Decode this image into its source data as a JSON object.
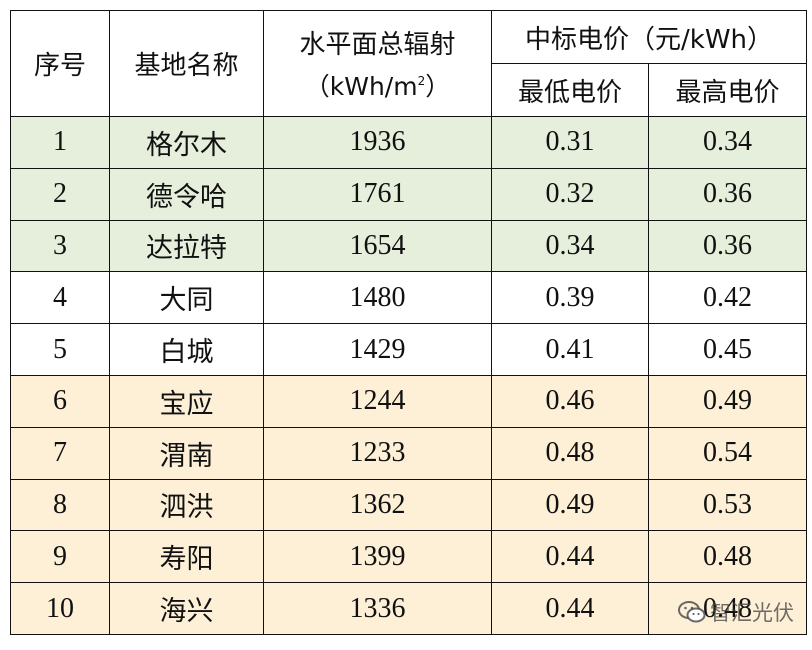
{
  "header": {
    "index": "序号",
    "base_name": "基地名称",
    "irradiance_line1": "水平面总辐射",
    "irradiance_unit_prefix": "（kWh/m",
    "irradiance_unit_sup": "2",
    "irradiance_unit_suffix": "）",
    "price_group": "中标电价（元/kWh）",
    "min_price": "最低电价",
    "max_price": "最高电价"
  },
  "rows": [
    {
      "idx": "1",
      "name": "格尔木",
      "irr": "1936",
      "min": "0.31",
      "max": "0.34",
      "band": "green"
    },
    {
      "idx": "2",
      "name": "德令哈",
      "irr": "1761",
      "min": "0.32",
      "max": "0.36",
      "band": "green"
    },
    {
      "idx": "3",
      "name": "达拉特",
      "irr": "1654",
      "min": "0.34",
      "max": "0.36",
      "band": "green"
    },
    {
      "idx": "4",
      "name": "大同",
      "irr": "1480",
      "min": "0.39",
      "max": "0.42",
      "band": "white"
    },
    {
      "idx": "5",
      "name": "白城",
      "irr": "1429",
      "min": "0.41",
      "max": "0.45",
      "band": "white"
    },
    {
      "idx": "6",
      "name": "宝应",
      "irr": "1244",
      "min": "0.46",
      "max": "0.49",
      "band": "orange"
    },
    {
      "idx": "7",
      "name": "渭南",
      "irr": "1233",
      "min": "0.48",
      "max": "0.54",
      "band": "orange"
    },
    {
      "idx": "8",
      "name": "泗洪",
      "irr": "1362",
      "min": "0.49",
      "max": "0.53",
      "band": "orange"
    },
    {
      "idx": "9",
      "name": "寿阳",
      "irr": "1399",
      "min": "0.44",
      "max": "0.48",
      "band": "orange"
    },
    {
      "idx": "10",
      "name": "海兴",
      "irr": "1336",
      "min": "0.44",
      "max": "0.48",
      "band": "orange"
    }
  ],
  "colors": {
    "green_band": "#e5efdb",
    "white_band": "#ffffff",
    "orange_band": "#fdf0d6",
    "border": "#111111"
  },
  "watermark": {
    "text": "智汇光伏",
    "icon": "wechat-icon"
  }
}
